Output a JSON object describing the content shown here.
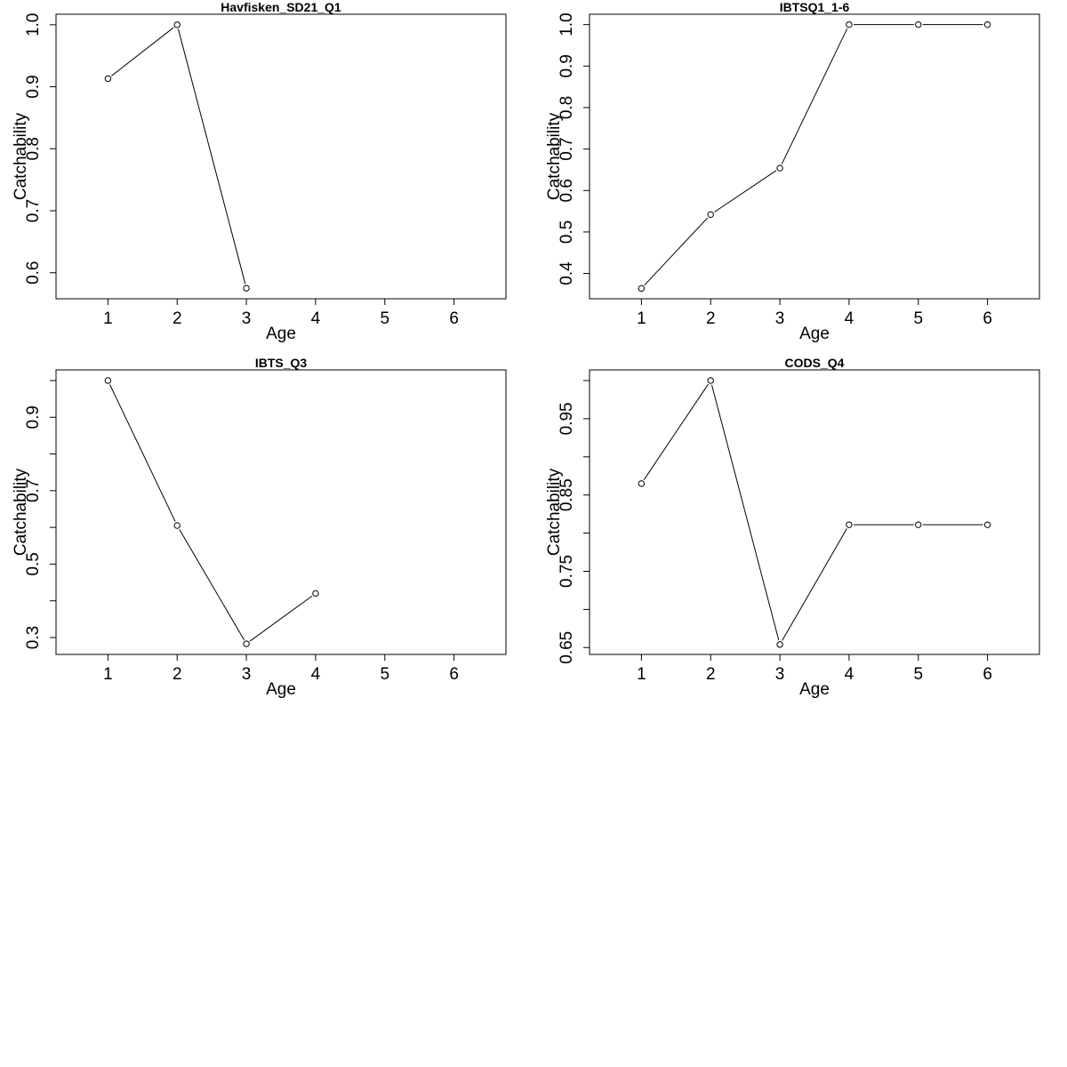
{
  "chart_data": [
    {
      "type": "line",
      "title": "Havfisken_SD21_Q1",
      "xlabel": "Age",
      "ylabel": "Catchability",
      "x": [
        1,
        2,
        3
      ],
      "values": [
        0.913,
        1.0,
        0.575
      ],
      "xlim": [
        0.25,
        6.75
      ],
      "ylim": [
        0.558,
        1.017
      ],
      "xticks": [
        1,
        2,
        3,
        4,
        5,
        6
      ],
      "yticks": [
        0.6,
        0.7,
        0.8,
        0.9,
        1.0
      ],
      "ytick_labels": [
        "0.6",
        "0.7",
        "0.8",
        "0.9",
        "1.0"
      ],
      "grid": false,
      "markers": "open-circle"
    },
    {
      "type": "line",
      "title": "IBTSQ1_1-6",
      "xlabel": "Age",
      "ylabel": "Catchability",
      "x": [
        1,
        2,
        3,
        4,
        5,
        6
      ],
      "values": [
        0.364,
        0.542,
        0.654,
        1.0,
        1.0,
        1.0
      ],
      "xlim": [
        0.25,
        6.75
      ],
      "ylim": [
        0.339,
        1.025
      ],
      "xticks": [
        1,
        2,
        3,
        4,
        5,
        6
      ],
      "yticks": [
        0.4,
        0.5,
        0.6,
        0.7,
        0.8,
        0.9,
        1.0
      ],
      "ytick_labels": [
        "0.4",
        "0.5",
        "0.6",
        "0.7",
        "0.8",
        "0.9",
        "1.0"
      ],
      "grid": false,
      "markers": "open-circle"
    },
    {
      "type": "line",
      "title": "IBTS_Q3",
      "xlabel": "Age",
      "ylabel": "Catchability",
      "x": [
        1,
        2,
        3,
        4
      ],
      "values": [
        1.0,
        0.605,
        0.283,
        0.42
      ],
      "xlim": [
        0.25,
        6.75
      ],
      "ylim": [
        0.254,
        1.029
      ],
      "xticks": [
        1,
        2,
        3,
        4,
        5,
        6
      ],
      "yticks": [
        0.3,
        0.4,
        0.5,
        0.6,
        0.7,
        0.8,
        0.9,
        1.0
      ],
      "ytick_labels": [
        "0.3",
        "",
        "0.5",
        "",
        "0.7",
        "",
        "0.9",
        ""
      ],
      "grid": false,
      "markers": "open-circle"
    },
    {
      "type": "line",
      "title": "CODS_Q4",
      "xlabel": "Age",
      "ylabel": "Catchability",
      "x": [
        1,
        2,
        3,
        4,
        5,
        6
      ],
      "values": [
        0.865,
        1.0,
        0.654,
        0.811,
        0.811,
        0.811
      ],
      "xlim": [
        0.25,
        6.75
      ],
      "ylim": [
        0.641,
        1.014
      ],
      "xticks": [
        1,
        2,
        3,
        4,
        5,
        6
      ],
      "yticks": [
        0.65,
        0.7,
        0.75,
        0.8,
        0.85,
        0.9,
        0.95,
        1.0
      ],
      "ytick_labels": [
        "0.65",
        "",
        "0.75",
        "",
        "0.85",
        "",
        "0.95",
        ""
      ],
      "grid": false,
      "markers": "open-circle"
    }
  ]
}
